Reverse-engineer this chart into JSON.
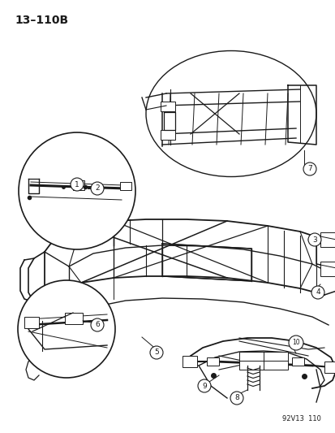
{
  "page_label": "13–110B",
  "bottom_label": "92V13  110",
  "bg_color": "#ffffff",
  "line_color": "#1a1a1a",
  "figsize": [
    4.14,
    5.33
  ],
  "dpi": 100
}
